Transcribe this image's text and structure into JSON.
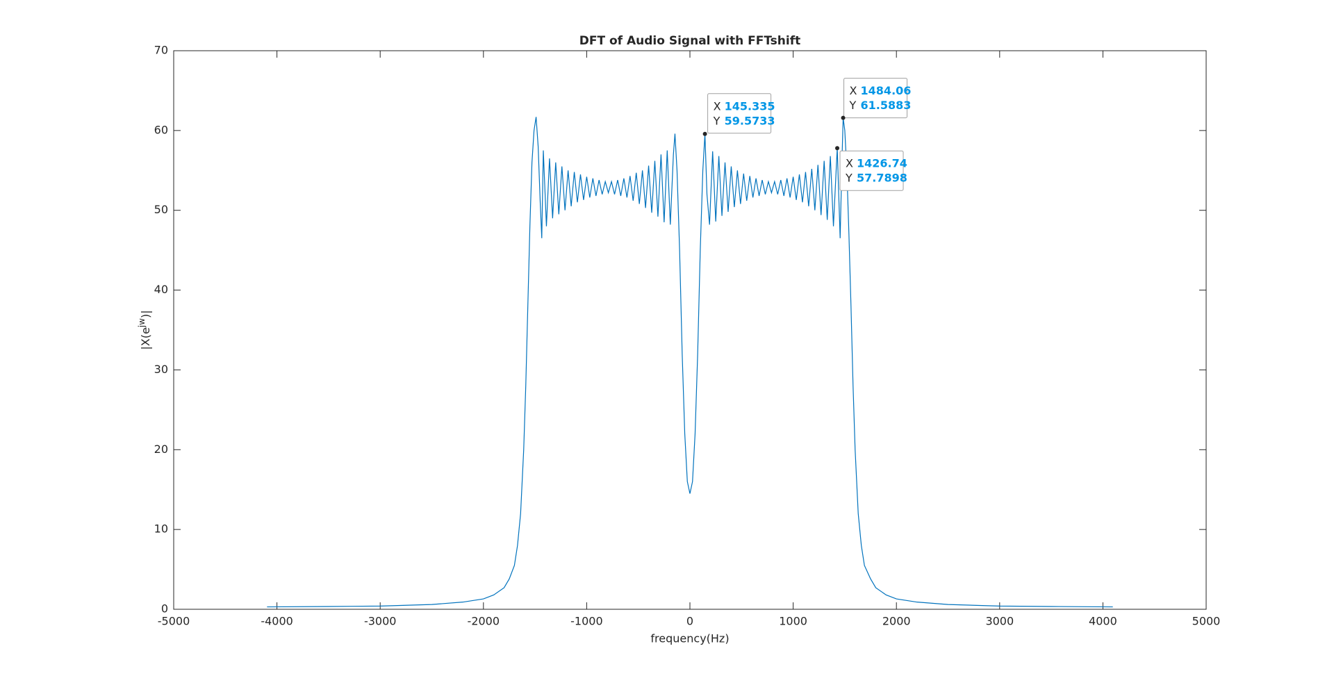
{
  "chart_data": {
    "type": "line",
    "title": "DFT of Audio Signal with FFTshift",
    "xlabel": "frequency(Hz)",
    "ylabel": {
      "base": "|X(e",
      "sup": "jw",
      "tail": ")|"
    },
    "color": "#0072bd",
    "x": [
      -4096,
      -3500,
      -3000,
      -2500,
      -2200,
      -2000,
      -1900,
      -1800,
      -1750,
      -1700,
      -1670,
      -1640,
      -1610,
      -1590,
      -1570,
      -1550,
      -1530,
      -1510,
      -1490,
      -1470,
      -1450,
      -1435,
      -1420,
      -1390,
      -1360,
      -1330,
      -1300,
      -1270,
      -1240,
      -1210,
      -1180,
      -1150,
      -1120,
      -1090,
      -1060,
      -1030,
      -1000,
      -970,
      -940,
      -910,
      -880,
      -850,
      -820,
      -790,
      -760,
      -730,
      -700,
      -670,
      -640,
      -610,
      -580,
      -550,
      -520,
      -490,
      -460,
      -430,
      -400,
      -370,
      -340,
      -310,
      -280,
      -250,
      -220,
      -190,
      -160,
      -145,
      -125,
      -100,
      -75,
      -50,
      -25,
      0,
      25,
      50,
      75,
      100,
      125,
      145.335,
      165,
      190,
      220,
      250,
      280,
      310,
      340,
      370,
      400,
      430,
      460,
      490,
      520,
      550,
      580,
      610,
      640,
      670,
      700,
      730,
      760,
      790,
      820,
      850,
      880,
      910,
      940,
      970,
      1000,
      1030,
      1060,
      1090,
      1120,
      1150,
      1180,
      1210,
      1240,
      1270,
      1300,
      1330,
      1360,
      1390,
      1426.74,
      1455,
      1470,
      1484.06,
      1500,
      1520,
      1540,
      1560,
      1580,
      1600,
      1630,
      1660,
      1690,
      1750,
      1800,
      1900,
      2000,
      2200,
      2500,
      3000,
      3500,
      4096
    ],
    "values": [
      0.3,
      0.35,
      0.4,
      0.6,
      0.9,
      1.3,
      1.8,
      2.7,
      3.8,
      5.5,
      8,
      12,
      20,
      28,
      38,
      48,
      56,
      60,
      61.7,
      58,
      51,
      46.5,
      57.5,
      48,
      56.5,
      49,
      56,
      49.5,
      55.5,
      50,
      55,
      50.5,
      54.8,
      51,
      54.5,
      51.3,
      54.2,
      51.6,
      54,
      51.8,
      53.8,
      52,
      53.6,
      52.2,
      53.6,
      52,
      53.8,
      51.8,
      54,
      51.6,
      54.3,
      51.2,
      54.7,
      50.8,
      55,
      50.3,
      55.6,
      49.7,
      56.2,
      49.2,
      57,
      48.5,
      57.5,
      48.2,
      57,
      59.6,
      55,
      45,
      32,
      22,
      16,
      14.5,
      16,
      22,
      32,
      45,
      55,
      59.5733,
      52,
      48.2,
      57.4,
      48.6,
      56.8,
      49.3,
      56,
      49.8,
      55.5,
      50.4,
      55,
      50.8,
      54.6,
      51.2,
      54.3,
      51.6,
      54,
      51.8,
      53.8,
      52,
      53.6,
      52.2,
      53.6,
      52,
      53.8,
      51.8,
      54,
      51.6,
      54.2,
      51.3,
      54.5,
      51,
      54.8,
      50.5,
      55.2,
      50,
      55.7,
      49.4,
      56.2,
      48.8,
      56.8,
      48,
      57.7898,
      46.5,
      55,
      61.5883,
      60,
      55,
      47,
      38,
      28,
      20,
      12,
      8,
      5.5,
      3.8,
      2.7,
      1.8,
      1.3,
      0.9,
      0.6,
      0.4,
      0.35,
      0.3
    ],
    "xlim": [
      -5000,
      5000
    ],
    "xticks": [
      -5000,
      -4000,
      -3000,
      -2000,
      -1000,
      0,
      1000,
      2000,
      3000,
      4000,
      5000
    ],
    "ylim": [
      0,
      70
    ],
    "yticks": [
      0,
      10,
      20,
      30,
      40,
      50,
      60,
      70
    ],
    "grid": false,
    "datatip_labels": [
      "X",
      "Y"
    ],
    "datatips": [
      {
        "x": 145.335,
        "y": 59.5733
      },
      {
        "x": 1426.74,
        "y": 57.7898
      },
      {
        "x": 1484.06,
        "y": 61.5883
      }
    ]
  }
}
